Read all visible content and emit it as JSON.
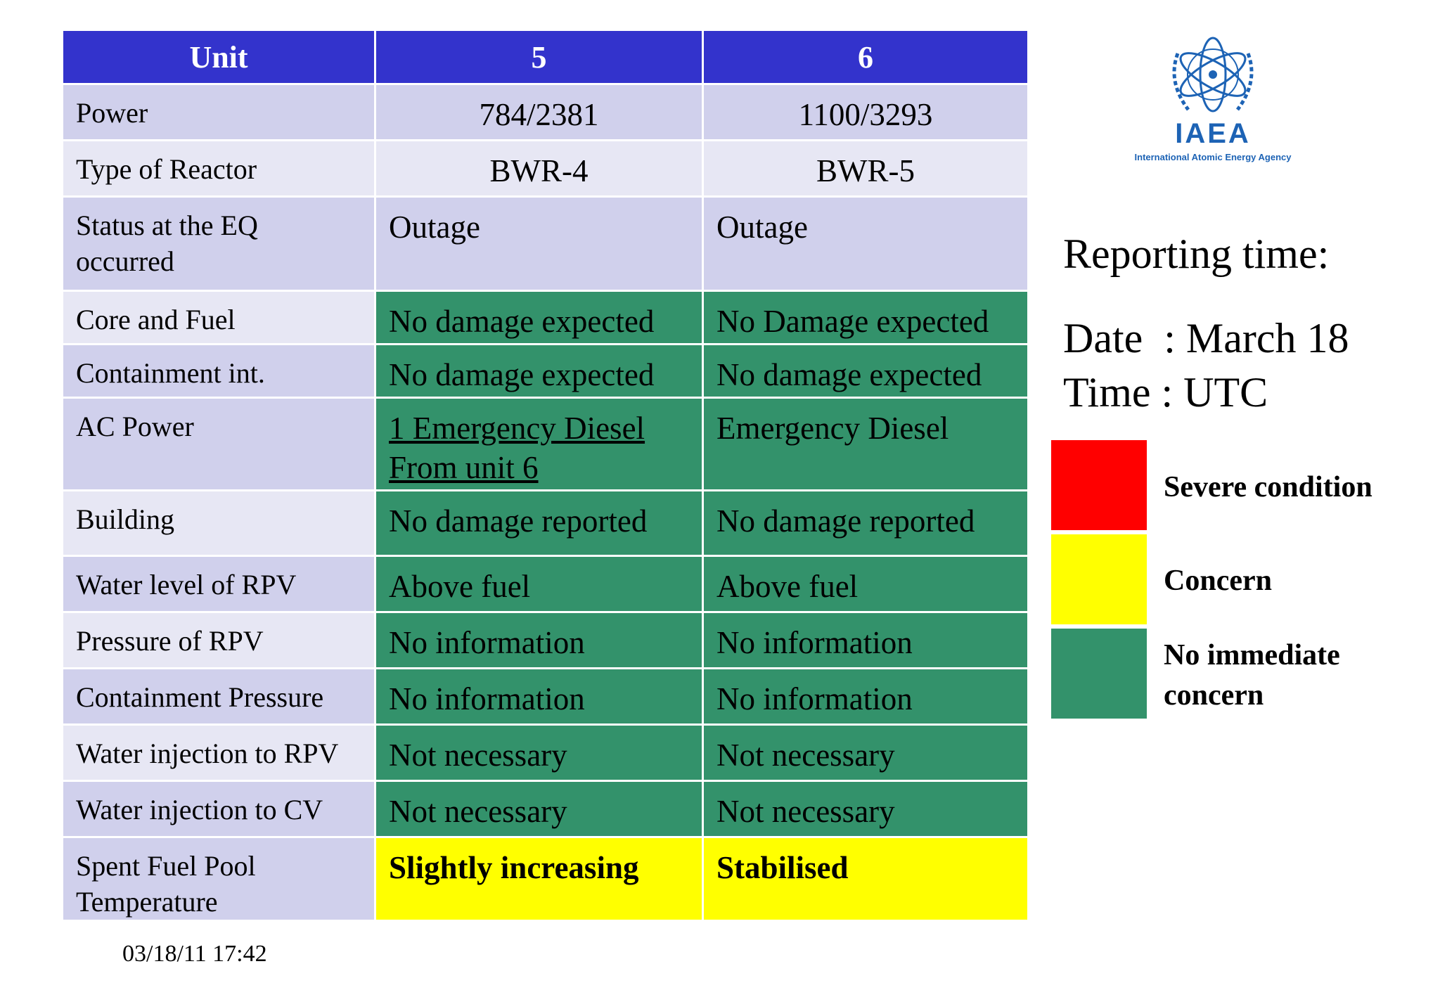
{
  "table": {
    "headers": [
      "Unit",
      "5",
      "6"
    ],
    "rows": [
      {
        "label": "Power",
        "u5": "784/2381",
        "u6": "1100/3293"
      },
      {
        "label": "Type of Reactor",
        "u5": "BWR-4",
        "u6": "BWR-5"
      },
      {
        "label": "Status at the EQ occurred",
        "u5": "Outage",
        "u6": "Outage"
      },
      {
        "label": "Core and Fuel",
        "u5": "No damage expected",
        "u6": "No Damage expected"
      },
      {
        "label": "Containment int.",
        "u5": "No damage expected",
        "u6": "No damage expected"
      },
      {
        "label": "AC Power",
        "u5": "1 Emergency Diesel From unit 6",
        "u6": "Emergency Diesel"
      },
      {
        "label": "Building",
        "u5": "No damage reported",
        "u6": "No damage reported"
      },
      {
        "label": "Water level of RPV",
        "u5": "Above fuel",
        "u6": "Above fuel"
      },
      {
        "label": "Pressure of RPV",
        "u5": "No information",
        "u6": "No information"
      },
      {
        "label": "Containment Pressure",
        "u5": "No information",
        "u6": "No information"
      },
      {
        "label": "Water injection to RPV",
        "u5": "Not necessary",
        "u6": "Not necessary"
      },
      {
        "label": "Water injection to CV",
        "u5": "Not necessary",
        "u6": "Not necessary"
      },
      {
        "label": "Spent Fuel Pool Temperature",
        "u5": "Slightly increasing",
        "u6": "Stabilised"
      }
    ],
    "colors": {
      "header": "#3333cc",
      "green": "#33926b",
      "yellow": "#ffff00",
      "red": "#ff0000"
    }
  },
  "logo": {
    "icon": "iaea-emblem",
    "name": "IAEA",
    "subtitle": "International Atomic Energy Agency"
  },
  "report": {
    "heading": "Reporting time:",
    "date": "Date  : March 18",
    "time": "Time : UTC"
  },
  "legend": {
    "severe": "Severe condition",
    "concern": "Concern",
    "no_concern": "No immediate concern"
  },
  "footer": {
    "date": "03/18/11 17:42"
  }
}
